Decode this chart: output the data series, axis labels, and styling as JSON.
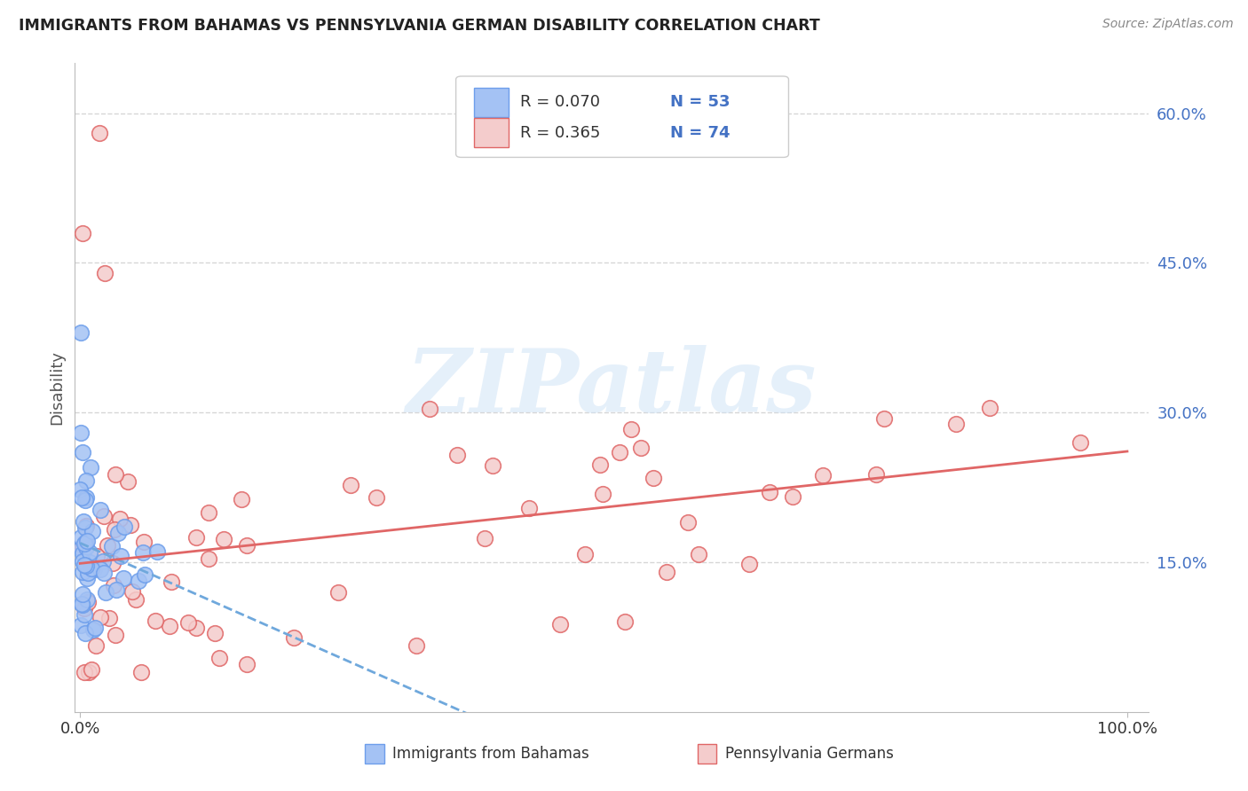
{
  "title": "IMMIGRANTS FROM BAHAMAS VS PENNSYLVANIA GERMAN DISABILITY CORRELATION CHART",
  "source": "Source: ZipAtlas.com",
  "ylabel": "Disability",
  "ytick_vals": [
    0.15,
    0.3,
    0.45,
    0.6
  ],
  "ytick_labels": [
    "15.0%",
    "30.0%",
    "45.0%",
    "60.0%"
  ],
  "xtick_labels": [
    "0.0%",
    "100.0%"
  ],
  "legend_r1": "R = 0.070",
  "legend_n1": "N = 53",
  "legend_r2": "R = 0.365",
  "legend_n2": "N = 74",
  "color_blue_fill": "#a4c2f4",
  "color_blue_edge": "#6d9eeb",
  "color_pink_fill": "#f4cccc",
  "color_pink_edge": "#e06666",
  "color_blue_line": "#6fa8dc",
  "color_pink_line": "#e06666",
  "color_dashed": "#a4c2f4",
  "color_grid": "#cccccc",
  "watermark_color": "#d0e4f7",
  "background": "#ffffff",
  "blue_r": 0.07,
  "pink_r": 0.365,
  "blue_n": 53,
  "pink_n": 74,
  "xmin": 0.0,
  "xmax": 1.0,
  "ymin": 0.0,
  "ymax": 0.65
}
